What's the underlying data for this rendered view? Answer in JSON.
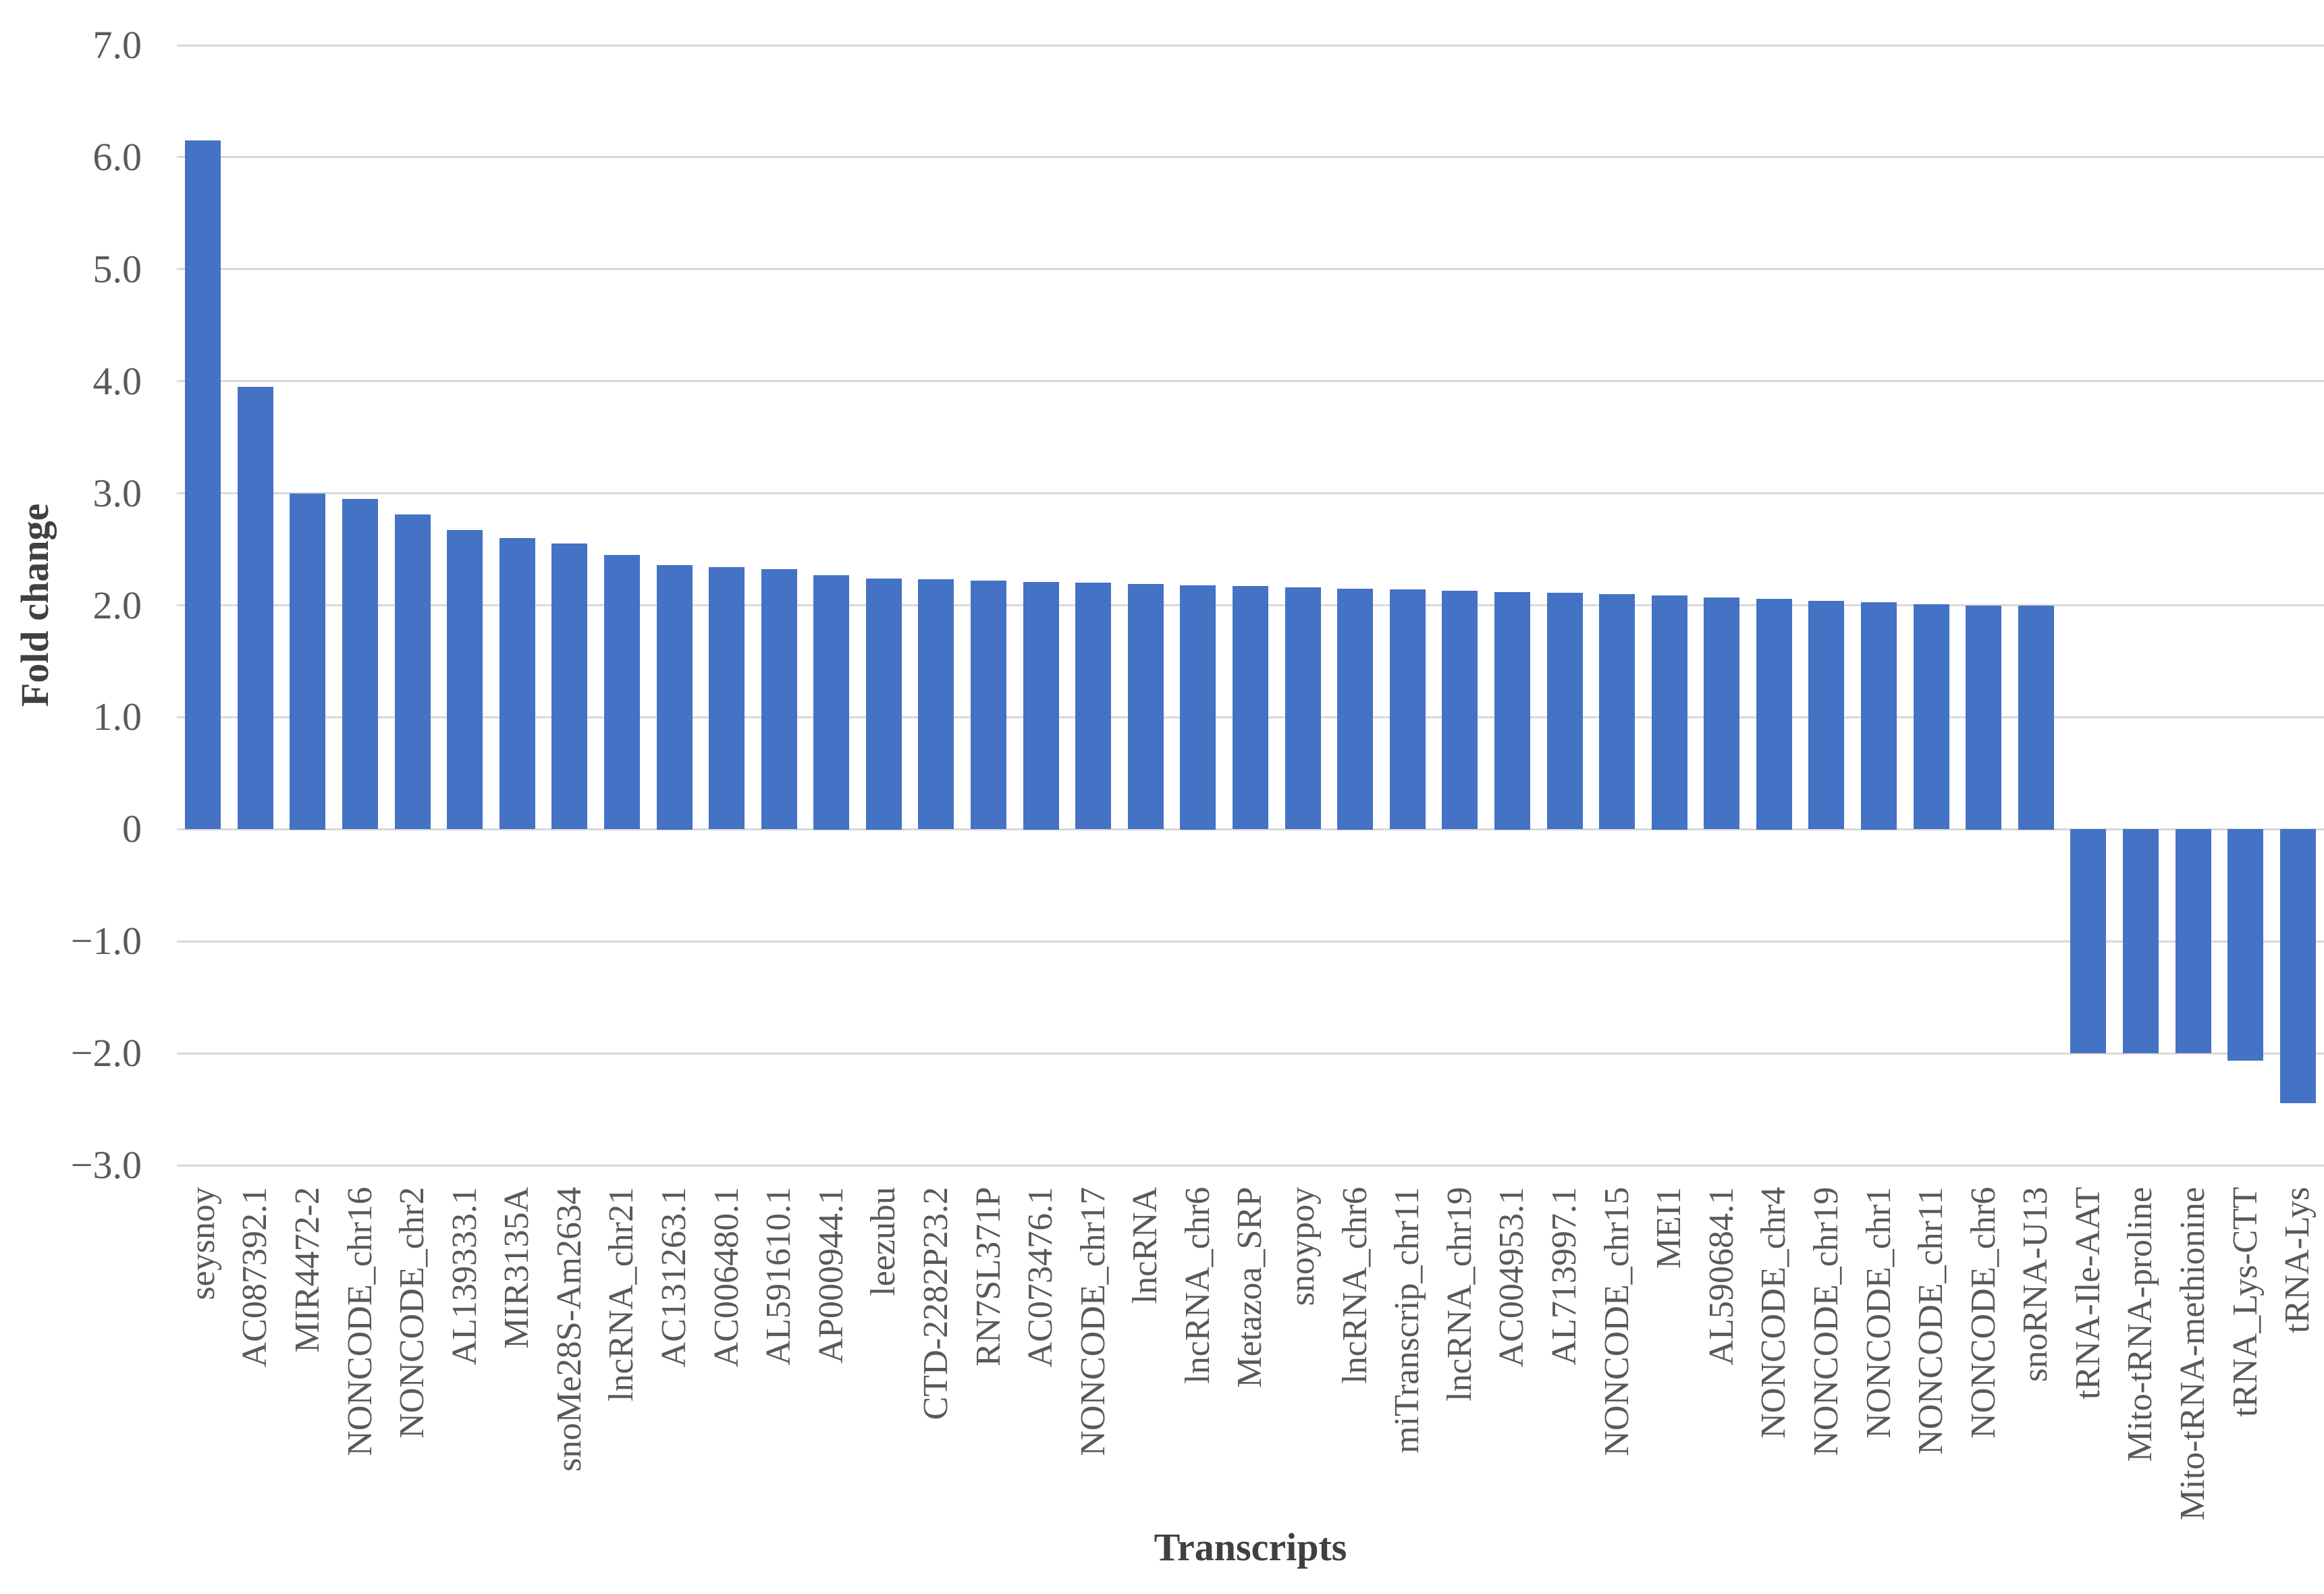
{
  "colors": {
    "bar": "#4472C4",
    "grid": "#D9D9D9",
    "tick_text": "#595959",
    "title_text": "#404040",
    "background": "#FFFFFF"
  },
  "chart_data": {
    "type": "bar",
    "title": "",
    "xlabel": "Transcripts",
    "ylabel": "Fold change",
    "ylim": [
      -3,
      7
    ],
    "ytick_step": 1,
    "ytick_labels": [
      "7.0",
      "6.0",
      "5.0",
      "4.0",
      "3.0",
      "2.0",
      "1.0",
      "0",
      "−1.0",
      "−2.0",
      "−3.0"
    ],
    "grid": true,
    "legend_position": "none",
    "categories": [
      "seysnoy",
      "AC087392.1",
      "MIR4472-2",
      "NONCODE_chr16",
      "NONCODE_chr2",
      "AL139333.1",
      "MIR3135A",
      "snoMe28S-Am2634",
      "lncRNA_chr21",
      "AC131263.1",
      "AC006480.1",
      "AL591610.1",
      "AP000944.1",
      "leezubu",
      "CTD-2282P23.2",
      "RN7SL371P",
      "AC073476.1",
      "NONCODE_chr17",
      "lncRNA",
      "lncRNA_chr6",
      "Metazoa_SRP",
      "snoypoy",
      "lncRNA_chr6",
      "miTranscrip_chr11",
      "lncRNA_chr19",
      "AC004953.1",
      "AL713997.1",
      "NONCODE_chr15",
      "MEI1",
      "AL590684.1",
      "NONCODE_chr4",
      "NONCODE_chr19",
      "NONCODE_chr1",
      "NONCODE_chr11",
      "NONCODE_chr6",
      "snoRNA-U13",
      "tRNA-Ile-AAT",
      "Mito-tRNA-proline",
      "Mito-tRNA-methionine",
      "tRNA_Lys-CTT",
      "tRNA-Lys"
    ],
    "values": [
      6.15,
      3.95,
      3.0,
      2.95,
      2.81,
      2.67,
      2.6,
      2.55,
      2.45,
      2.36,
      2.34,
      2.32,
      2.27,
      2.24,
      2.23,
      2.22,
      2.21,
      2.2,
      2.19,
      2.18,
      2.17,
      2.16,
      2.15,
      2.14,
      2.13,
      2.12,
      2.11,
      2.1,
      2.09,
      2.07,
      2.06,
      2.04,
      2.03,
      2.01,
      2.0,
      2.0,
      -2.0,
      -2.0,
      -2.0,
      -2.07,
      -2.45
    ]
  }
}
